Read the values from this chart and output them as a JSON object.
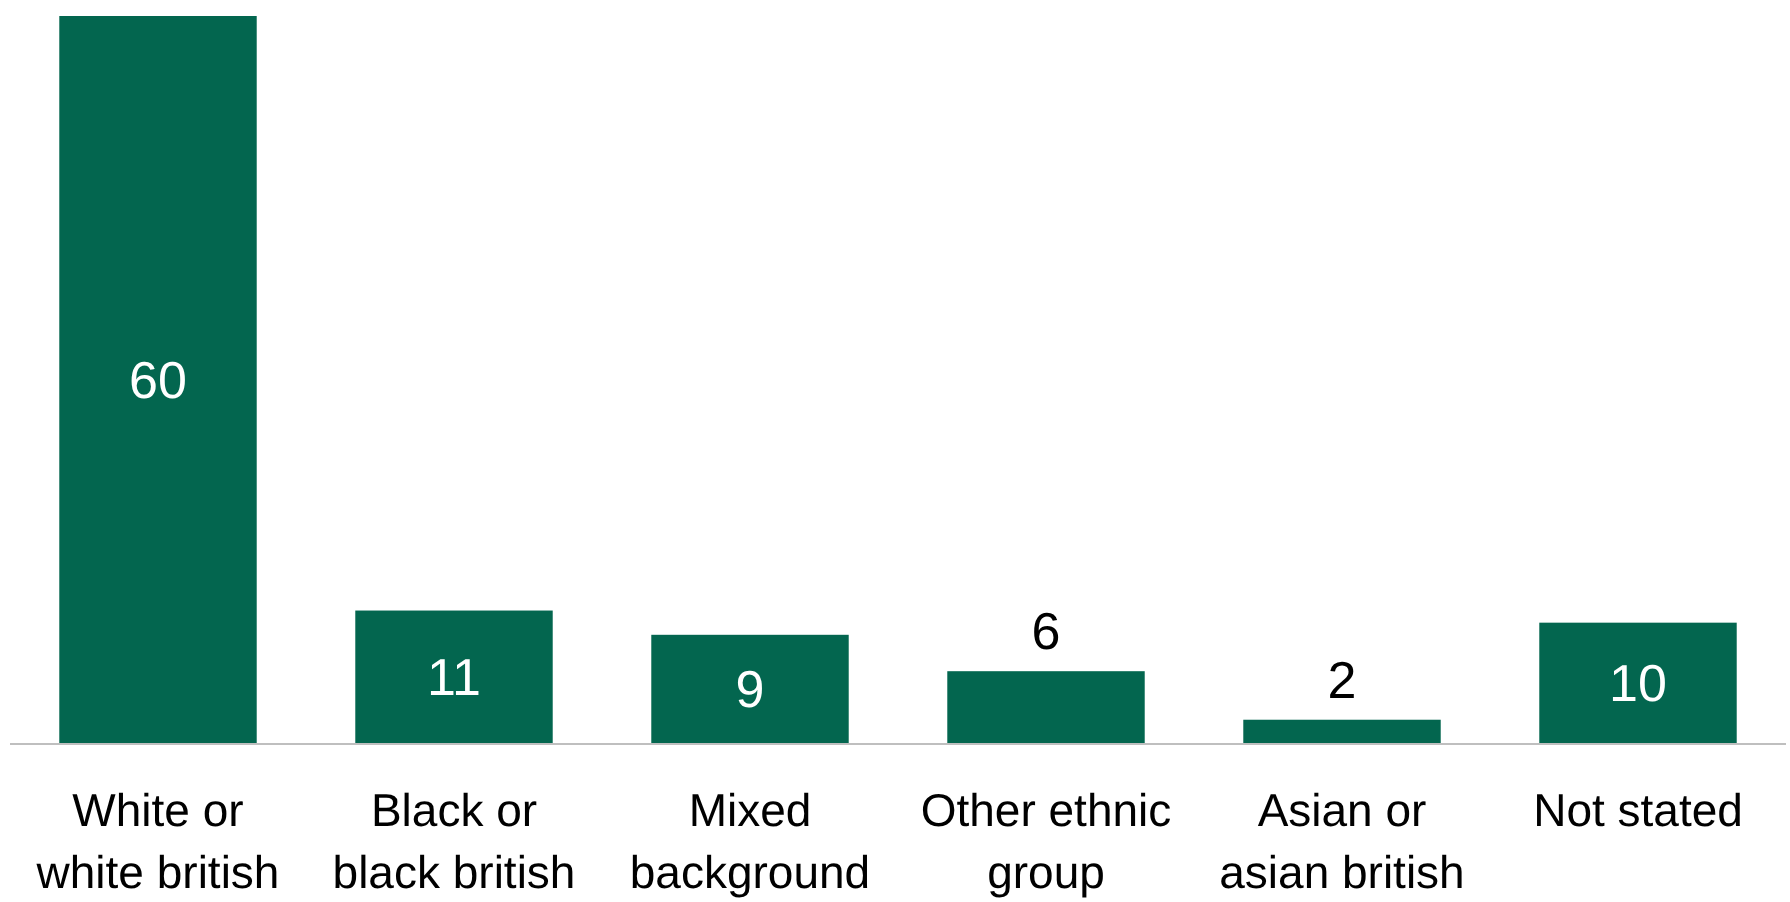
{
  "chart_data": {
    "type": "bar",
    "categories": [
      "White or white british",
      "Black or black british",
      "Mixed background",
      "Other ethnic group",
      "Asian or asian british",
      "Not stated"
    ],
    "values": [
      60,
      11,
      9,
      6,
      2,
      10
    ],
    "color": "#03664f",
    "data_labels": true
  }
}
